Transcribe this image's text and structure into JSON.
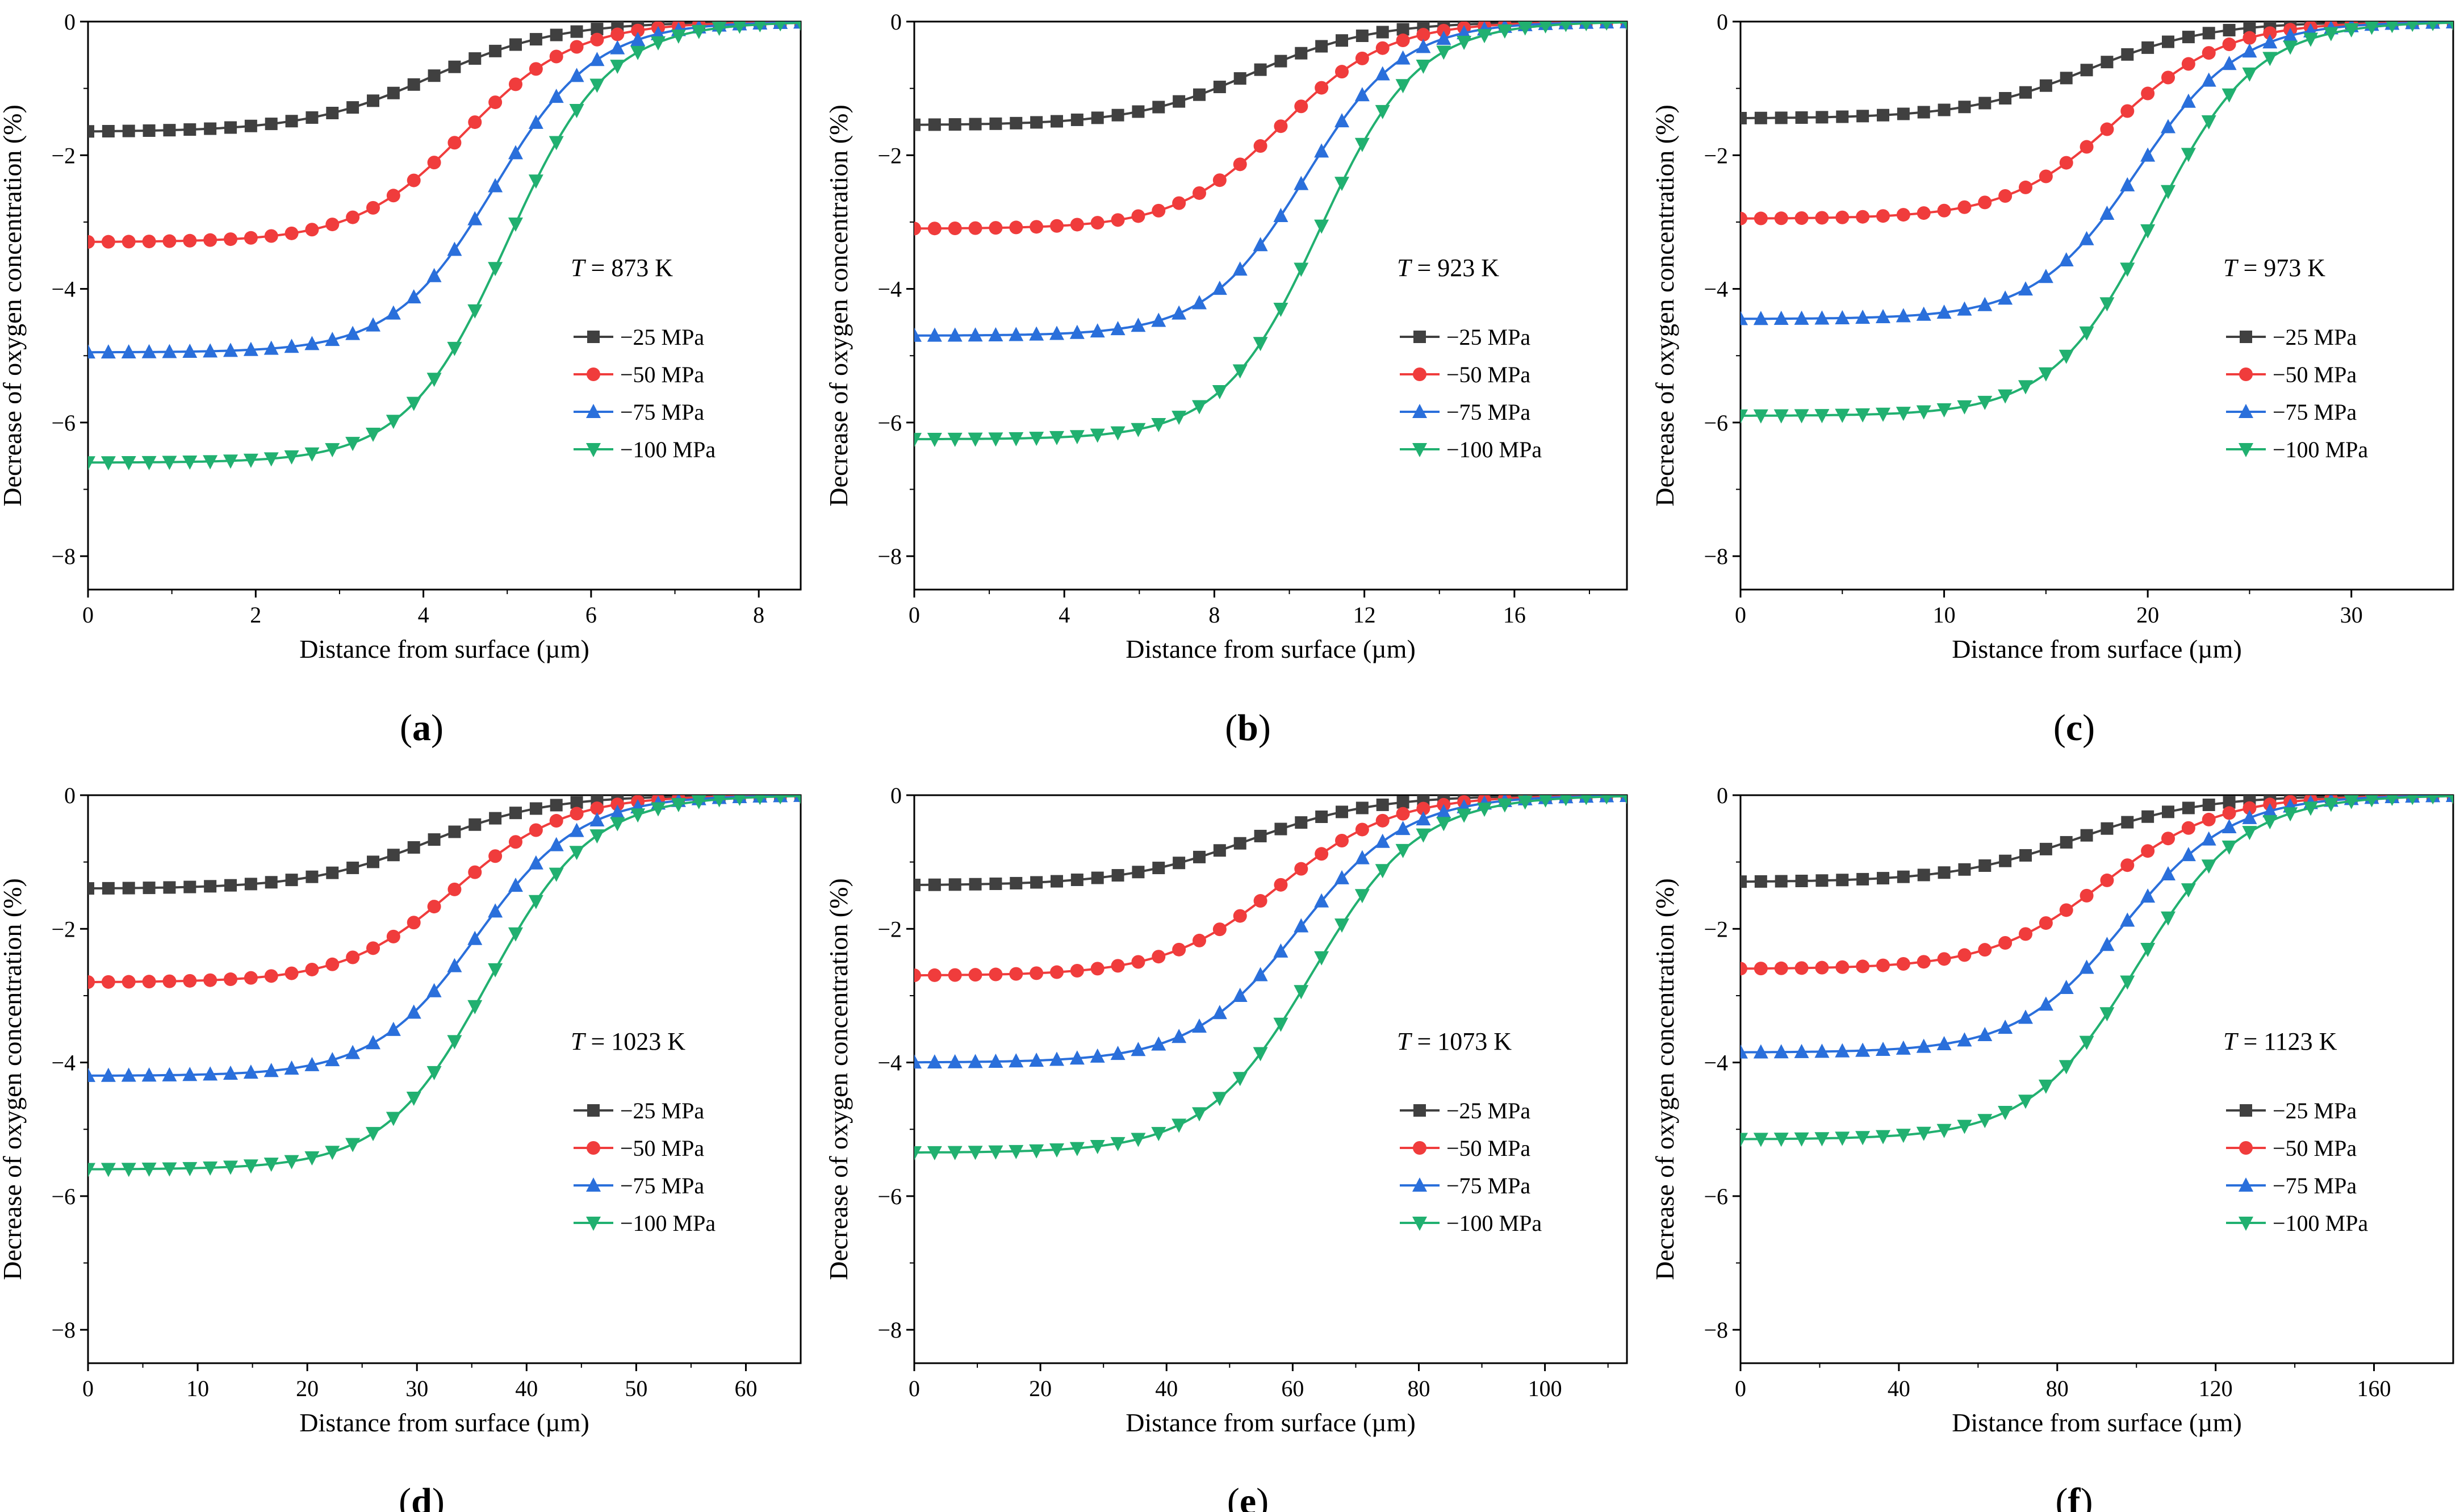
{
  "figure": {
    "ylabel": "Decrease of oxygen concentration (%)",
    "xlabel": "Distance from surface (µm)",
    "y_ticks": [
      "0",
      "−2",
      "−4",
      "−6",
      "−8"
    ],
    "series_names": [
      "−25 MPa",
      "−50 MPa",
      "−75 MPa",
      "−100 MPa"
    ],
    "colors": {
      "-25 MPa": "#404040",
      "-50 MPa": "#f03c3c",
      "-75 MPa": "#2a6fdb",
      "-100 MPa": "#21b070"
    }
  },
  "chart_data": [
    {
      "type": "line",
      "panel": "a",
      "temperature_label": "873 K",
      "xlabel": "Distance from surface (µm)",
      "ylabel": "Decrease of oxygen concentration (%)",
      "xlim": [
        0,
        8.5
      ],
      "ylim": [
        -8.5,
        0
      ],
      "x_ticks": [
        "0",
        "2",
        "4",
        "6",
        "8"
      ],
      "x_tick_values": [
        0,
        2,
        4,
        6,
        8
      ],
      "series": [
        {
          "name": "−25 MPa",
          "plateau": -1.65,
          "x50": 4.1,
          "width": 0.75
        },
        {
          "name": "−50 MPa",
          "plateau": -3.3,
          "x50": 4.5,
          "width": 0.65
        },
        {
          "name": "−75 MPa",
          "plateau": -4.95,
          "x50": 4.85,
          "width": 0.6
        },
        {
          "name": "−100 MPa",
          "plateau": -6.6,
          "x50": 5.0,
          "width": 0.6
        }
      ]
    },
    {
      "type": "line",
      "panel": "b",
      "temperature_label": "923 K",
      "xlabel": "Distance from surface (µm)",
      "ylabel": "Decrease of oxygen concentration (%)",
      "xlim": [
        0,
        19
      ],
      "ylim": [
        -8.5,
        0
      ],
      "x_ticks": [
        "0",
        "4",
        "8",
        "12",
        "16"
      ],
      "x_tick_values": [
        0,
        4,
        8,
        12,
        16
      ],
      "series": [
        {
          "name": "−25 MPa",
          "plateau": -1.55,
          "x50": 9.0,
          "width": 1.6
        },
        {
          "name": "−50 MPa",
          "plateau": -3.1,
          "x50": 9.8,
          "width": 1.4
        },
        {
          "name": "−75 MPa",
          "plateau": -4.7,
          "x50": 10.4,
          "width": 1.3
        },
        {
          "name": "−100 MPa",
          "plateau": -6.25,
          "x50": 10.8,
          "width": 1.3
        }
      ]
    },
    {
      "type": "line",
      "panel": "c",
      "temperature_label": "973 K",
      "xlabel": "Distance from surface (µm)",
      "ylabel": "Decrease of oxygen concentration (%)",
      "xlim": [
        0,
        35
      ],
      "ylim": [
        -8.5,
        0
      ],
      "x_ticks": [
        "0",
        "10",
        "20",
        "30"
      ],
      "x_tick_values": [
        0,
        10,
        20,
        30
      ],
      "series": [
        {
          "name": "−25 MPa",
          "plateau": -1.45,
          "x50": 17.0,
          "width": 3.0
        },
        {
          "name": "−50 MPa",
          "plateau": -2.95,
          "x50": 18.5,
          "width": 2.7
        },
        {
          "name": "−75 MPa",
          "plateau": -4.45,
          "x50": 19.5,
          "width": 2.5
        },
        {
          "name": "−100 MPa",
          "plateau": -5.9,
          "x50": 20.3,
          "width": 2.5
        }
      ]
    },
    {
      "type": "line",
      "panel": "d",
      "temperature_label": "1023 K",
      "xlabel": "Distance from surface (µm)",
      "ylabel": "Decrease of oxygen concentration (%)",
      "xlim": [
        0,
        65
      ],
      "ylim": [
        -8.5,
        0
      ],
      "x_ticks": [
        "0",
        "10",
        "20",
        "30",
        "40",
        "50",
        "60"
      ],
      "x_tick_values": [
        0,
        10,
        20,
        30,
        40,
        50,
        60
      ],
      "series": [
        {
          "name": "−25 MPa",
          "plateau": -1.4,
          "x50": 31.0,
          "width": 5.5
        },
        {
          "name": "−50 MPa",
          "plateau": -2.8,
          "x50": 33.5,
          "width": 5.0
        },
        {
          "name": "−75 MPa",
          "plateau": -4.2,
          "x50": 35.5,
          "width": 4.7
        },
        {
          "name": "−100 MPa",
          "plateau": -5.6,
          "x50": 36.5,
          "width": 4.7
        }
      ]
    },
    {
      "type": "line",
      "panel": "e",
      "temperature_label": "1073 K",
      "xlabel": "Distance from surface (µm)",
      "ylabel": "Decrease of oxygen concentration (%)",
      "xlim": [
        0,
        113
      ],
      "ylim": [
        -8.5,
        0
      ],
      "x_ticks": [
        "0",
        "20",
        "40",
        "60",
        "80",
        "100"
      ],
      "x_tick_values": [
        0,
        20,
        40,
        60,
        80,
        100
      ],
      "series": [
        {
          "name": "−25 MPa",
          "plateau": -1.35,
          "x50": 53.0,
          "width": 10.0
        },
        {
          "name": "−50 MPa",
          "plateau": -2.7,
          "x50": 58.0,
          "width": 9.0
        },
        {
          "name": "−75 MPa",
          "plateau": -4.0,
          "x50": 61.0,
          "width": 8.5
        },
        {
          "name": "−100 MPa",
          "plateau": -5.35,
          "x50": 63.0,
          "width": 8.5
        }
      ]
    },
    {
      "type": "line",
      "panel": "f",
      "temperature_label": "1123 K",
      "xlabel": "Distance from surface (µm)",
      "ylabel": "Decrease of oxygen concentration (%)",
      "xlim": [
        0,
        180
      ],
      "ylim": [
        -8.5,
        0
      ],
      "x_ticks": [
        "0",
        "40",
        "80",
        "120",
        "160"
      ],
      "x_tick_values": [
        0,
        40,
        80,
        120,
        160
      ],
      "series": [
        {
          "name": "−25 MPa",
          "plateau": -1.3,
          "x50": 85.0,
          "width": 16.0
        },
        {
          "name": "−50 MPa",
          "plateau": -2.6,
          "x50": 92.0,
          "width": 14.5
        },
        {
          "name": "−75 MPa",
          "plateau": -3.85,
          "x50": 97.0,
          "width": 13.5
        },
        {
          "name": "−100 MPa",
          "plateau": -5.15,
          "x50": 100.0,
          "width": 13.5
        }
      ]
    }
  ]
}
